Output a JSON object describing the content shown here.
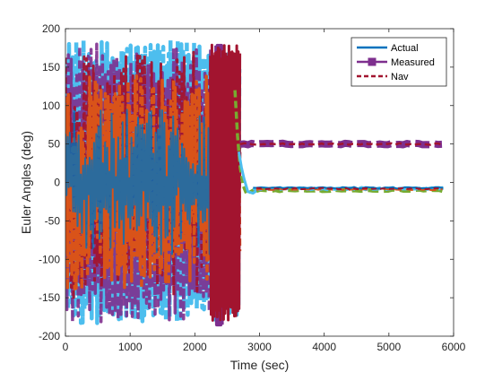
{
  "chart_data": {
    "type": "line",
    "title": "",
    "xlabel": "Time (sec)",
    "ylabel": "Euler Angles (deg)",
    "xlim": [
      0,
      6000
    ],
    "ylim": [
      -200,
      200
    ],
    "xticks": [
      0,
      1000,
      2000,
      3000,
      4000,
      5000,
      6000
    ],
    "yticks": [
      -200,
      -150,
      -100,
      -50,
      0,
      50,
      100,
      150,
      200
    ],
    "xtick_labels": [
      "0",
      "1000",
      "2000",
      "3000",
      "4000",
      "5000",
      "6000"
    ],
    "ytick_labels": [
      "-200",
      "-150",
      "-100",
      "-50",
      "0",
      "50",
      "100",
      "150",
      "200"
    ],
    "grid": false,
    "legend_position": "top-right",
    "legend": [
      {
        "name": "Actual",
        "color": "#0072BD",
        "style": "solid"
      },
      {
        "name": "Measured",
        "color": "#7E2F8E",
        "style": "solid-square-marker"
      },
      {
        "name": "Nav",
        "color": "#A2142F",
        "style": "dashed"
      }
    ],
    "series_colors": [
      "#0072BD",
      "#D95319",
      "#EDB120",
      "#7E2F8E",
      "#77AC30",
      "#4DBEEE",
      "#A2142F"
    ],
    "tumbling_end_time": 2700,
    "settled_pitch_deg": 50,
    "settled_roll_yaw_deg": -8,
    "data_end_time": 5850
  }
}
